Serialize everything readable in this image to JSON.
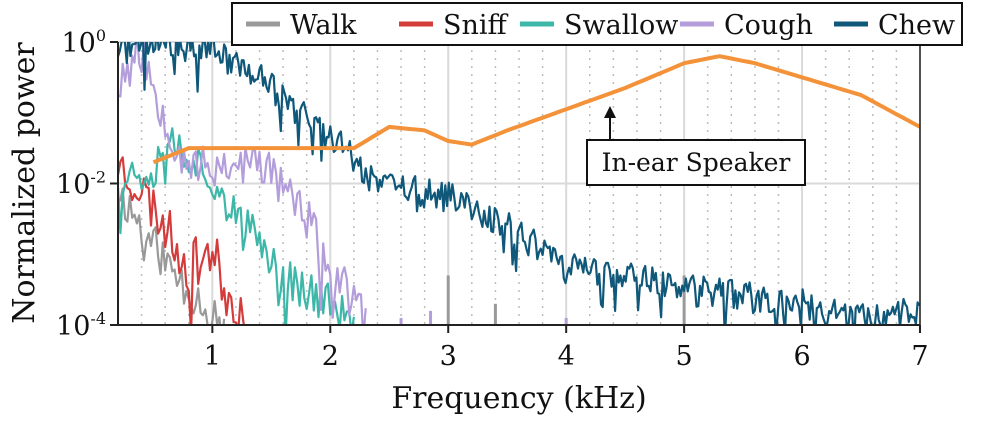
{
  "chart_data": {
    "type": "line",
    "title": "",
    "xlabel": "Frequency (kHz)",
    "ylabel": "Normalized power",
    "xlim": [
      0.2,
      7.0
    ],
    "ylim_log10": [
      -4,
      0
    ],
    "y_scale": "log",
    "x_ticks": [
      {
        "value": 1,
        "label": "1"
      },
      {
        "value": 2,
        "label": "2"
      },
      {
        "value": 3,
        "label": "3"
      },
      {
        "value": 4,
        "label": "4"
      },
      {
        "value": 5,
        "label": "5"
      },
      {
        "value": 6,
        "label": "6"
      },
      {
        "value": 7,
        "label": "7"
      }
    ],
    "y_ticks": [
      {
        "value": 0,
        "base": "10",
        "exp": "0"
      },
      {
        "value": -2,
        "base": "10",
        "exp": "-2"
      },
      {
        "value": -4,
        "base": "10",
        "exp": "-4"
      }
    ],
    "grid": true,
    "legend_position": "top-right",
    "series": [
      {
        "name": "Walk",
        "color": "#999999",
        "noise": 0.3,
        "seed": 11,
        "step": 0.02,
        "points": [
          [
            0.2,
            -2.1
          ],
          [
            0.4,
            -2.6
          ],
          [
            0.6,
            -3.1
          ],
          [
            0.8,
            -3.5
          ],
          [
            1.0,
            -3.8
          ],
          [
            1.1,
            -4.0
          ]
        ],
        "spikes": [
          [
            3.0,
            -4.0,
            -3.3
          ],
          [
            3.4,
            -4.0,
            -3.7
          ],
          [
            5.0,
            -4.0,
            -3.3
          ]
        ]
      },
      {
        "name": "Sniff",
        "color": "#d43c3c",
        "noise": 0.35,
        "seed": 23,
        "step": 0.02,
        "points": [
          [
            0.2,
            -1.7
          ],
          [
            0.4,
            -2.1
          ],
          [
            0.6,
            -2.6
          ],
          [
            0.8,
            -3.2
          ],
          [
            1.0,
            -2.9
          ],
          [
            1.1,
            -3.5
          ],
          [
            1.25,
            -3.8
          ],
          [
            1.3,
            -4.0
          ]
        ],
        "spikes": []
      },
      {
        "name": "Swallow",
        "color": "#3db7a8",
        "noise": 0.3,
        "seed": 37,
        "step": 0.02,
        "points": [
          [
            0.2,
            -1.9
          ],
          [
            0.5,
            -1.8
          ],
          [
            0.6,
            -1.3
          ],
          [
            0.8,
            -1.6
          ],
          [
            1.0,
            -1.9
          ],
          [
            1.2,
            -2.5
          ],
          [
            1.4,
            -2.8
          ],
          [
            1.6,
            -3.3
          ],
          [
            1.8,
            -3.5
          ],
          [
            2.0,
            -3.7
          ],
          [
            2.2,
            -4.0
          ]
        ],
        "spikes": []
      },
      {
        "name": "Cough",
        "color": "#b39ddb",
        "noise": 0.32,
        "seed": 53,
        "step": 0.02,
        "points": [
          [
            0.2,
            -0.6
          ],
          [
            0.35,
            0.0
          ],
          [
            0.5,
            -0.6
          ],
          [
            0.7,
            -1.5
          ],
          [
            0.9,
            -1.8
          ],
          [
            1.2,
            -1.7
          ],
          [
            1.5,
            -1.8
          ],
          [
            1.8,
            -2.5
          ],
          [
            2.0,
            -3.2
          ],
          [
            2.2,
            -3.7
          ],
          [
            2.3,
            -4.0
          ]
        ],
        "spikes": [
          [
            2.6,
            -4.0,
            -3.9
          ],
          [
            2.85,
            -4.0,
            -3.8
          ],
          [
            4.0,
            -4.0,
            -3.9
          ]
        ]
      },
      {
        "name": "Chew",
        "color": "#0f587a",
        "noise": 0.22,
        "seed": 71,
        "step": 0.015,
        "points": [
          [
            0.2,
            -0.1
          ],
          [
            0.6,
            0.0
          ],
          [
            1.0,
            -0.1
          ],
          [
            1.2,
            -0.3
          ],
          [
            1.4,
            -0.5
          ],
          [
            1.6,
            -0.8
          ],
          [
            2.0,
            -1.3
          ],
          [
            2.4,
            -2.0
          ],
          [
            3.0,
            -2.2
          ],
          [
            3.5,
            -2.6
          ],
          [
            4.0,
            -3.2
          ],
          [
            4.5,
            -3.3
          ],
          [
            5.0,
            -3.5
          ],
          [
            5.5,
            -3.6
          ],
          [
            6.0,
            -3.7
          ],
          [
            6.5,
            -3.9
          ],
          [
            7.0,
            -3.8
          ]
        ],
        "spikes": []
      },
      {
        "name": "In-ear Speaker",
        "color": "#f4923a",
        "noise": 0.0,
        "seed": 0,
        "step": 0.05,
        "in_legend": false,
        "points": [
          [
            0.5,
            -1.7
          ],
          [
            0.8,
            -1.5
          ],
          [
            1.2,
            -1.5
          ],
          [
            1.7,
            -1.5
          ],
          [
            2.2,
            -1.5
          ],
          [
            2.5,
            -1.2
          ],
          [
            2.8,
            -1.25
          ],
          [
            3.0,
            -1.4
          ],
          [
            3.2,
            -1.45
          ],
          [
            3.5,
            -1.25
          ],
          [
            4.0,
            -0.95
          ],
          [
            4.5,
            -0.65
          ],
          [
            5.0,
            -0.3
          ],
          [
            5.3,
            -0.2
          ],
          [
            5.6,
            -0.3
          ],
          [
            6.0,
            -0.5
          ],
          [
            6.5,
            -0.75
          ],
          [
            7.0,
            -1.2
          ]
        ],
        "spikes": []
      }
    ],
    "annotations": [
      {
        "text": "In-ear Speaker",
        "arrow_to": {
          "x": 4.35,
          "y": -0.9
        }
      }
    ]
  }
}
